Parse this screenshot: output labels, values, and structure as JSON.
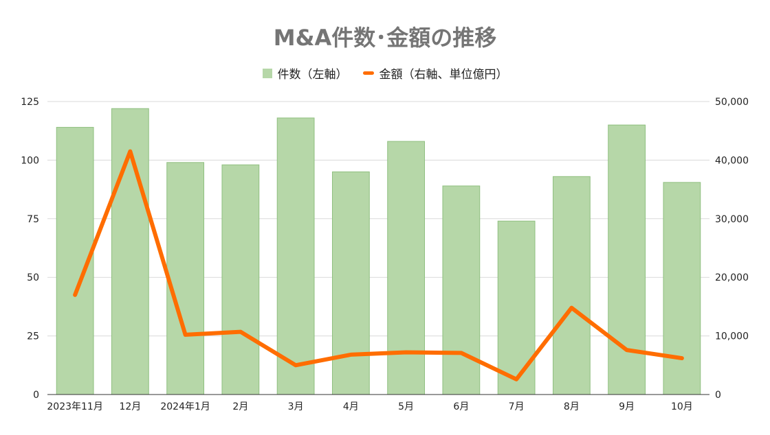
{
  "chart_data": {
    "type": "bar",
    "title": "M&A件数･金額の推移",
    "categories": [
      "2023年11月",
      "12月",
      "2024年1月",
      "2月",
      "3月",
      "4月",
      "5月",
      "6月",
      "7月",
      "8月",
      "9月",
      "10月"
    ],
    "series": [
      {
        "name": "件数（左軸）",
        "type": "bar",
        "axis": "left",
        "color": "#b6d7a8",
        "values": [
          114,
          122,
          99,
          98,
          118,
          95,
          108,
          89,
          74,
          93,
          115,
          90.5
        ]
      },
      {
        "name": "金額（右軸、単位億円）",
        "type": "line",
        "axis": "right",
        "color": "#ff6d01",
        "values": [
          17000,
          41500,
          10200,
          10700,
          5000,
          6800,
          7200,
          7100,
          2600,
          14800,
          7600,
          6200
        ]
      }
    ],
    "y_left": {
      "lim": [
        0,
        125
      ],
      "ticks": [
        "0",
        "25",
        "50",
        "75",
        "100",
        "125"
      ]
    },
    "y_right": {
      "lim": [
        0,
        50000
      ],
      "ticks": [
        "0",
        "10,000",
        "20,000",
        "30,000",
        "40,000",
        "50,000"
      ]
    },
    "grid": true,
    "legend_position": "top"
  }
}
